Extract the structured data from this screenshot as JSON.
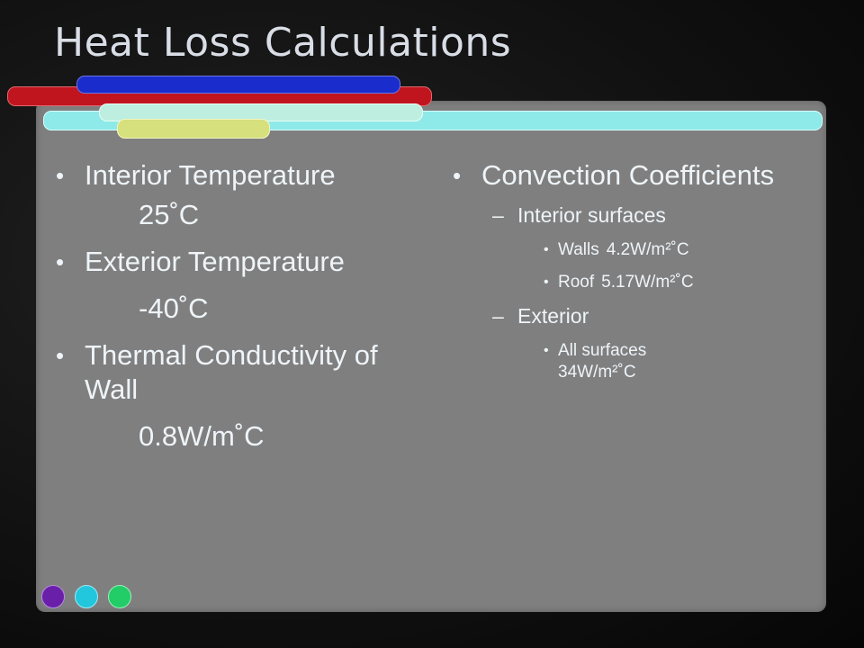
{
  "slide": {
    "title": "Heat Loss Calculations",
    "left": [
      {
        "label": "Interior Temperature",
        "value": "25˚C"
      },
      {
        "label": "Exterior Temperature",
        "value": "-40˚C"
      },
      {
        "label": "Thermal Conductivity of Wall",
        "value": "0.8W/m˚C"
      }
    ],
    "right": {
      "heading": "Convection Coefficients",
      "interior": {
        "label": "Interior surfaces",
        "items": [
          {
            "name": "Walls",
            "value": "4.2W/m²˚C"
          },
          {
            "name": "Roof",
            "value": "5.17W/m²˚C"
          }
        ]
      },
      "exterior": {
        "label": "Exterior",
        "items": [
          {
            "text": "All surfaces 34W/m²˚C"
          }
        ]
      }
    }
  },
  "colors": {
    "panel": "#7f7f7f",
    "accent_red": "#c0141f",
    "accent_blue": "#1a2ccc",
    "accent_cyan": "#8ee9e9",
    "accent_yellow": "#d6e07c",
    "dot_purple": "#6a1fa8",
    "dot_cyan": "#22c6dd",
    "dot_green": "#22cc66"
  }
}
